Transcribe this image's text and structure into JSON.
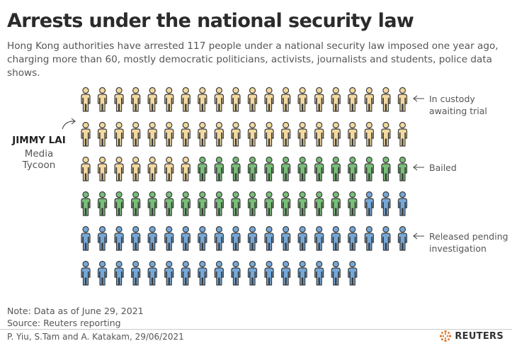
{
  "title": "Arrests under the national security law",
  "subtitle": "Hong Kong authorities have arrested 117 people under a national security law imposed one year ago, charging more than 60, mostly democratic politicians, activists, journalists and students, police data shows.",
  "highlight": {
    "name": "JIMMY LAI",
    "role": "Media Tycoon"
  },
  "chart_data": {
    "type": "pictogram",
    "total": 117,
    "per_row": 20,
    "categories": [
      {
        "name": "In custody awaiting trial",
        "label_lines": [
          "In custody",
          "awaiting trial"
        ],
        "count": 47,
        "color": "#f3d9a0"
      },
      {
        "name": "Bailed",
        "label_lines": [
          "Bailed"
        ],
        "count": 30,
        "color": "#78be78"
      },
      {
        "name": "Released pending investigation",
        "label_lines": [
          "Released pending",
          "investigation"
        ],
        "count": 40,
        "color": "#75a8d8"
      }
    ],
    "highlighted_index": 20
  },
  "note": "Note: Data as of June 29, 2021",
  "source": "Source: Reuters reporting",
  "credit": "P. Yiu, S.Tam and A. Katakam, 29/06/2021",
  "logo": {
    "text": "REUTERS",
    "icon": "reuters-dots-logo"
  },
  "colors": {
    "stroke": "#3a3a3a",
    "text": "#555555"
  }
}
